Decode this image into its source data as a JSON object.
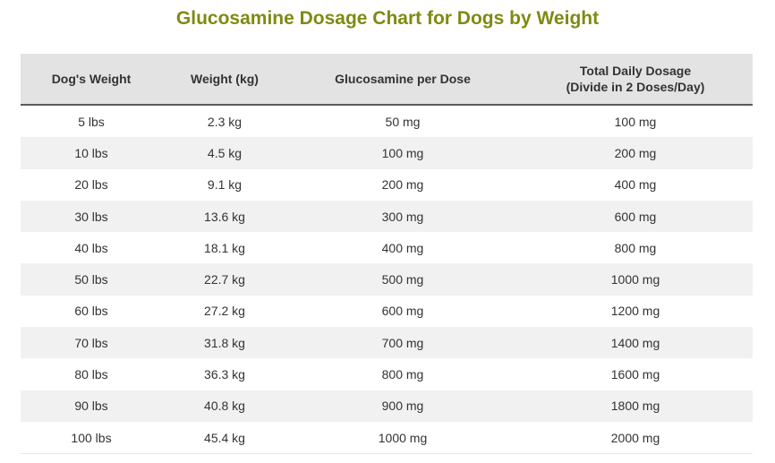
{
  "title": "Glucosamine Dosage Chart for Dogs by Weight",
  "colors": {
    "title": "#7f8a12",
    "header_bg": "#e3e3e3",
    "row_alt_bg": "#f1f1f1",
    "header_border": "#5a5a5a"
  },
  "table": {
    "headers": {
      "weight_lbs": "Dog's Weight",
      "weight_kg": "Weight (kg)",
      "per_dose": "Glucosamine per Dose",
      "daily_line1": "Total Daily Dosage",
      "daily_line2": "(Divide in 2 Doses/Day)"
    },
    "rows": [
      [
        "5 lbs",
        "2.3 kg",
        "50 mg",
        "100 mg"
      ],
      [
        "10 lbs",
        "4.5 kg",
        "100 mg",
        "200 mg"
      ],
      [
        "20 lbs",
        "9.1 kg",
        "200 mg",
        "400 mg"
      ],
      [
        "30 lbs",
        "13.6 kg",
        "300 mg",
        "600 mg"
      ],
      [
        "40 lbs",
        "18.1 kg",
        "400 mg",
        "800 mg"
      ],
      [
        "50 lbs",
        "22.7 kg",
        "500 mg",
        "1000 mg"
      ],
      [
        "60 lbs",
        "27.2 kg",
        "600 mg",
        "1200 mg"
      ],
      [
        "70 lbs",
        "31.8 kg",
        "700 mg",
        "1400 mg"
      ],
      [
        "80 lbs",
        "36.3 kg",
        "800 mg",
        "1600 mg"
      ],
      [
        "90 lbs",
        "40.8 kg",
        "900 mg",
        "1800 mg"
      ],
      [
        "100 lbs",
        "45.4 kg",
        "1000 mg",
        "2000 mg"
      ]
    ]
  }
}
